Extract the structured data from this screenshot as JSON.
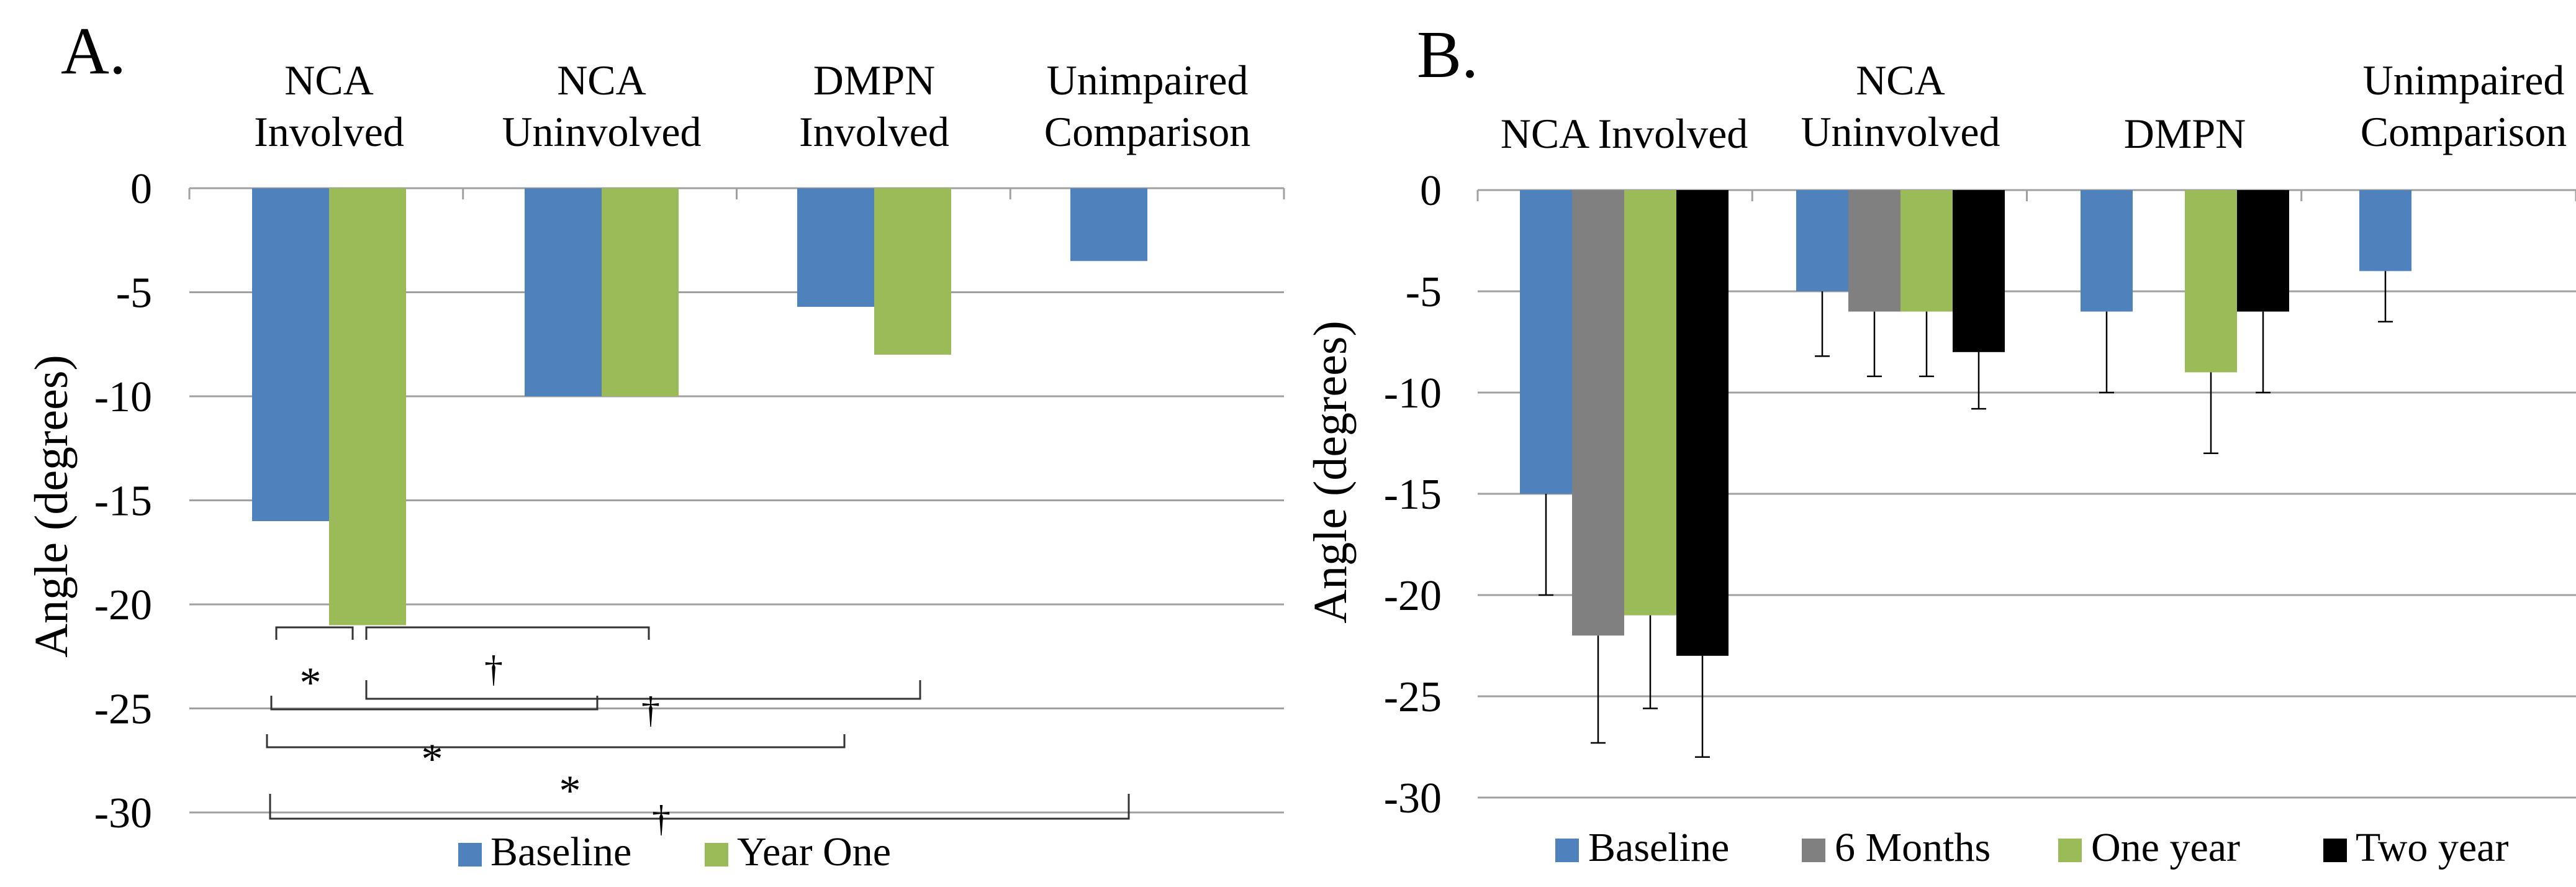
{
  "chart_data": [
    {
      "type": "bar",
      "panel_label": "A.",
      "categories": [
        "NCA Involved",
        "NCA Uninvolved",
        "DMPN Involved",
        "Unimpaired Comparison"
      ],
      "category_label_lines": [
        [
          "NCA",
          "Involved"
        ],
        [
          "NCA",
          "Uninvolved"
        ],
        [
          "DMPN",
          "Involved"
        ],
        [
          "Unimpaired",
          "Comparison"
        ]
      ],
      "series": [
        {
          "name": "Baseline",
          "color": "#4f81bd",
          "values": [
            -16,
            -10,
            -5.7,
            -3.5
          ]
        },
        {
          "name": "Year One",
          "color": "#9bbb59",
          "values": [
            -21,
            -10,
            -8,
            null
          ]
        }
      ],
      "ylabel": "Angle (degrees)",
      "ylim": [
        -30,
        0
      ],
      "yticks": [
        0,
        -5,
        -10,
        -15,
        -20,
        -25,
        -30
      ],
      "ytick_labels": [
        "0",
        "-5",
        "-10",
        "-15",
        "-20",
        "-25",
        "-30"
      ],
      "grid": true,
      "legend": "bottom",
      "significance_markers": [
        "*",
        "†",
        "†",
        "*",
        "*",
        "†"
      ]
    },
    {
      "type": "bar",
      "panel_label": "B.",
      "categories": [
        "NCA Involved",
        "NCA Uninvolved",
        "DMPN",
        "Unimpaired Comparison"
      ],
      "category_label_lines": [
        [
          "NCA Involved"
        ],
        [
          "NCA",
          "Uninvolved"
        ],
        [
          "DMPN"
        ],
        [
          "Unimpaired",
          "Comparison"
        ]
      ],
      "series": [
        {
          "name": "Baseline",
          "color": "#4f81bd",
          "values": [
            -15,
            -5,
            -6,
            -4
          ],
          "error": [
            5,
            3.2,
            4,
            2.5
          ]
        },
        {
          "name": "6 Months",
          "color": "#808080",
          "values": [
            -22,
            -6,
            null,
            null
          ],
          "error": [
            5.3,
            3.2,
            null,
            null
          ]
        },
        {
          "name": "One year",
          "color": "#9bbb59",
          "values": [
            -21,
            -6,
            -9,
            null
          ],
          "error": [
            4.6,
            3.2,
            4,
            null
          ]
        },
        {
          "name": "Two year",
          "color": "#000000",
          "values": [
            -23,
            -8,
            -6,
            null
          ],
          "error": [
            5,
            2.8,
            4,
            null
          ]
        }
      ],
      "ylabel": "Angle (degrees)",
      "ylim": [
        -30,
        0
      ],
      "yticks": [
        0,
        -5,
        -10,
        -15,
        -20,
        -25,
        -30
      ],
      "ytick_labels": [
        "0",
        "-5",
        "-10",
        "-15",
        "-20",
        "-25",
        "-30"
      ],
      "grid": true,
      "legend": "bottom"
    }
  ]
}
